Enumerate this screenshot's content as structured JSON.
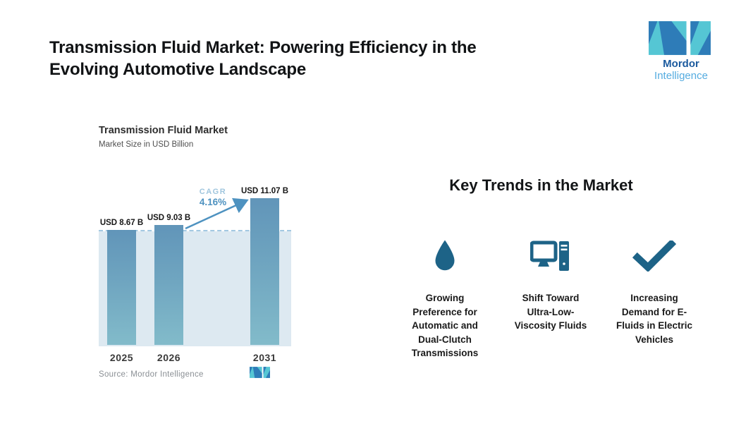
{
  "header": {
    "title": "Transmission Fluid Market: Powering Efficiency in the\nEvolving Automotive Landscape"
  },
  "logo": {
    "brand_bold": "Mordor",
    "brand_light": "Intelligence",
    "teal": "#55c6d4",
    "blue": "#2e7cb8",
    "text_dark_color": "#1b5a9e",
    "text_light_color": "#55ace0"
  },
  "chart_data": {
    "type": "bar",
    "title": "Transmission Fluid Market",
    "subtitle": "Market Size in USD Billion",
    "categories": [
      "2025",
      "2026",
      "2031"
    ],
    "values": [
      8.67,
      9.03,
      11.07
    ],
    "value_labels": [
      "USD 8.67 B",
      "USD 9.03 B",
      "USD 11.07 B"
    ],
    "unit": "USD Billion",
    "cagr_label": "CAGR",
    "cagr_value": "4.16%",
    "source": "Source: Mordor Intelligence",
    "ylim": [
      0,
      12.3
    ],
    "grid": false,
    "legend": false,
    "bar_color_top": "#6195b9",
    "bar_color_bottom": "#82bbca",
    "reference_band_color": "#dde9f1",
    "dashed_line_color": "#a3c8e2",
    "arrow_color": "#4e92c0"
  },
  "trends": {
    "heading": "Key Trends in the Market",
    "icon_color": "#1d6387",
    "items": [
      {
        "icon": "water-drop-icon",
        "label": "Growing\nPreference for\nAutomatic and\nDual-Clutch\nTransmissions"
      },
      {
        "icon": "computer-icon",
        "label": "Shift Toward\nUltra-Low-\nViscosity Fluids"
      },
      {
        "icon": "checkmark-icon",
        "label": "Increasing\nDemand for E-\nFluids in Electric\nVehicles"
      }
    ]
  }
}
